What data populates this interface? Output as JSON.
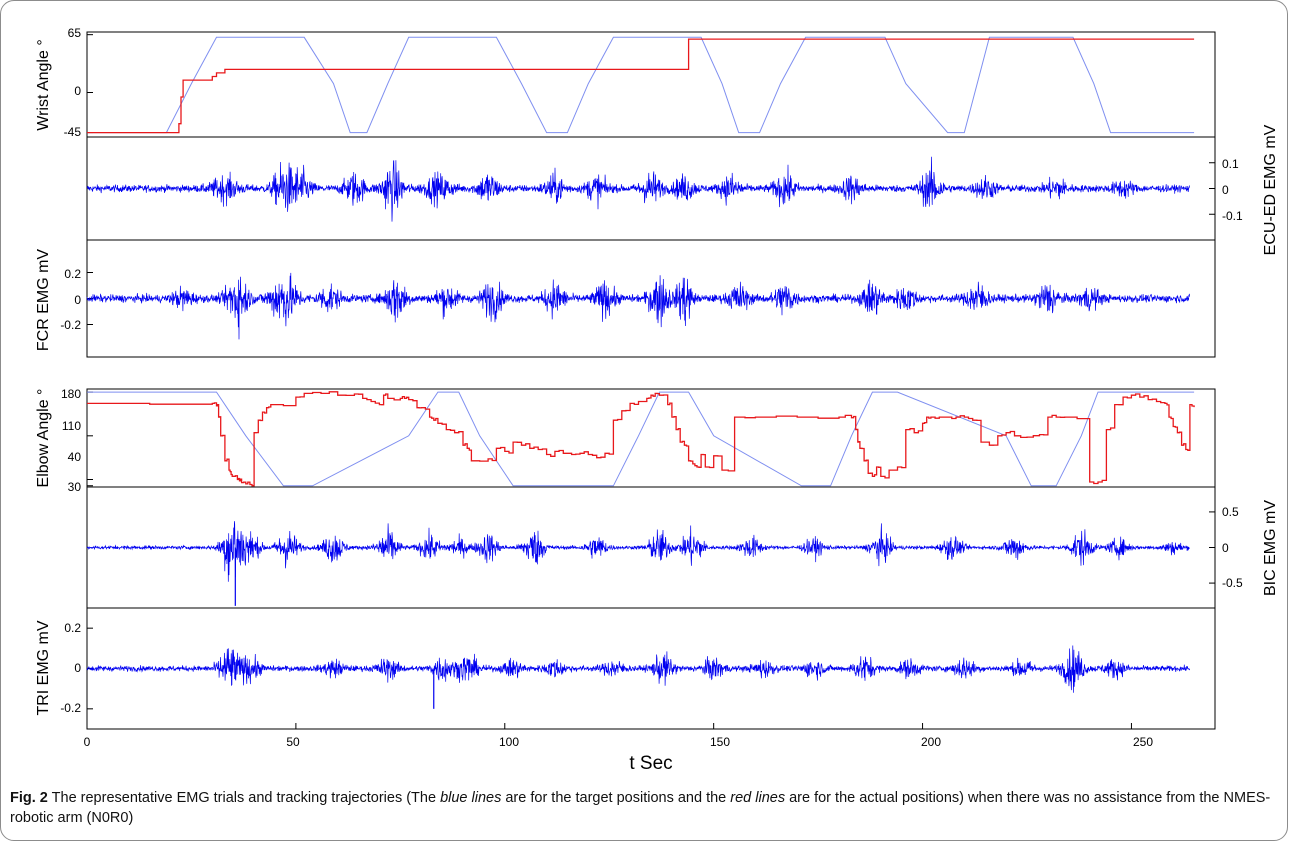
{
  "figure": {
    "caption_label": "Fig. 2",
    "caption_part1": " The representative EMG trials and tracking trajectories (The ",
    "caption_blue": "blue lines",
    "caption_part2": " are for the target positions and the ",
    "caption_red": "red lines",
    "caption_part3": " are for the actual positions) when there was no assistance from the NMES-robotic arm (N0R0)"
  },
  "colors": {
    "target": "#7f8ff0",
    "actual": "#e8181b",
    "emg": "#0000f0",
    "axis": "#000000"
  },
  "chart_data": [
    {
      "type": "line",
      "name": "wrist",
      "ylabel": "Wrist Angle °",
      "yticks": [
        -45,
        0,
        65
      ],
      "ylim": [
        -50,
        68
      ],
      "xlim": [
        0,
        270
      ],
      "series": [
        {
          "name": "target",
          "x": [
            0,
            19,
            25,
            31,
            52,
            59,
            63,
            67,
            72,
            77,
            98,
            104,
            110,
            115,
            120,
            126,
            145,
            147,
            152,
            156,
            161,
            166,
            172,
            191,
            196,
            206,
            210,
            216,
            236,
            241,
            245,
            250,
            265
          ],
          "y": [
            -45,
            -45,
            10,
            62,
            62,
            10,
            -45,
            -45,
            10,
            62,
            62,
            10,
            -45,
            -45,
            10,
            62,
            62,
            62,
            10,
            -45,
            -45,
            10,
            62,
            62,
            10,
            -45,
            -45,
            62,
            62,
            10,
            -45,
            -45,
            -45
          ]
        },
        {
          "name": "actual",
          "x": [
            0,
            21,
            22,
            22.5,
            23,
            29,
            30,
            31,
            32,
            33,
            34,
            143.5,
            144,
            265
          ],
          "y": [
            -45,
            -45,
            -35,
            -5,
            14,
            14,
            18,
            22,
            22,
            26,
            26,
            26,
            60,
            60
          ]
        }
      ]
    },
    {
      "type": "line",
      "name": "ecu-emg",
      "ylabel": "ECU-ED EMG mV",
      "yticks": [
        -0.1,
        0,
        0.1
      ],
      "ylim": [
        -0.2,
        0.2
      ],
      "xlim": [
        0,
        270
      ],
      "noise_base": 0.014,
      "bursts": [
        [
          33,
          4,
          0.045
        ],
        [
          47,
          3,
          0.09
        ],
        [
          51,
          3,
          0.07
        ],
        [
          64,
          3,
          0.06
        ],
        [
          73,
          3,
          0.1
        ],
        [
          84,
          4,
          0.05
        ],
        [
          96,
          3,
          0.06
        ],
        [
          112,
          3,
          0.05
        ],
        [
          122,
          3,
          0.05
        ],
        [
          135,
          3,
          0.06
        ],
        [
          143,
          3,
          0.045
        ],
        [
          154,
          3,
          0.05
        ],
        [
          167,
          3,
          0.06
        ],
        [
          183,
          3,
          0.045
        ],
        [
          202,
          3,
          0.08
        ],
        [
          215,
          3,
          0.04
        ],
        [
          232,
          3,
          0.04
        ],
        [
          248,
          3,
          0.03
        ]
      ]
    },
    {
      "type": "line",
      "name": "fcr-emg",
      "ylabel": "FCR EMG mV",
      "yticks": [
        -0.2,
        0,
        0.2
      ],
      "ylim": [
        -0.45,
        0.45
      ],
      "xlim": [
        0,
        270
      ],
      "noise_base": 0.03,
      "bursts": [
        [
          23,
          3,
          0.07
        ],
        [
          36,
          3,
          0.22
        ],
        [
          47,
          4,
          0.2
        ],
        [
          58,
          3,
          0.1
        ],
        [
          74,
          3,
          0.17
        ],
        [
          86,
          3,
          0.1
        ],
        [
          97,
          3,
          0.14
        ],
        [
          112,
          3,
          0.12
        ],
        [
          124,
          3,
          0.12
        ],
        [
          137,
          3,
          0.18
        ],
        [
          143,
          2,
          0.22
        ],
        [
          156,
          3,
          0.1
        ],
        [
          167,
          3,
          0.12
        ],
        [
          188,
          3,
          0.12
        ],
        [
          196,
          3,
          0.09
        ],
        [
          213,
          3,
          0.12
        ],
        [
          230,
          3,
          0.12
        ],
        [
          240,
          3,
          0.08
        ]
      ]
    },
    {
      "type": "line",
      "name": "elbow",
      "ylabel": "Elbow Angle °",
      "yticks": [
        30,
        40,
        110,
        180
      ],
      "ylim": [
        28,
        185
      ],
      "xlim": [
        0,
        270
      ],
      "series": [
        {
          "name": "target",
          "x": [
            0,
            31,
            38,
            47,
            54,
            77,
            84,
            89,
            94,
            102,
            126,
            132,
            137,
            144,
            150,
            171,
            178,
            183,
            188,
            194,
            220,
            226,
            232,
            238,
            242,
            265
          ],
          "y": [
            180,
            180,
            110,
            30,
            30,
            110,
            180,
            180,
            110,
            30,
            30,
            110,
            180,
            180,
            110,
            30,
            30,
            110,
            180,
            180,
            110,
            30,
            30,
            110,
            180,
            180
          ]
        },
        {
          "name": "actual",
          "x": [
            0,
            30,
            31,
            31.5,
            32,
            33,
            34,
            34.5,
            35,
            36,
            36.5,
            37,
            38,
            39,
            40,
            41,
            42,
            43,
            44,
            50,
            52,
            56,
            60,
            64,
            66,
            68,
            70,
            71,
            72,
            75,
            76,
            77,
            79,
            80,
            82,
            83,
            84,
            86,
            88,
            90,
            91,
            92,
            96,
            98,
            100,
            102,
            104,
            106,
            108,
            110,
            112,
            114,
            116,
            118,
            120,
            122,
            124,
            126,
            128,
            130,
            132,
            134,
            135,
            136,
            137,
            139,
            140,
            141,
            142,
            143,
            144,
            145,
            146,
            147,
            148,
            150,
            152,
            155,
            160,
            170,
            180,
            183,
            184,
            184.5,
            185,
            186,
            187,
            188,
            189,
            190,
            192,
            194,
            196,
            198,
            200,
            201,
            202,
            204,
            206,
            208,
            210,
            212,
            214,
            216,
            218,
            220,
            222,
            225,
            228,
            230,
            232,
            234,
            240,
            242,
            244,
            246,
            248,
            250,
            252,
            254,
            256,
            258,
            259,
            260,
            261,
            262,
            263,
            264,
            265
          ],
          "y": [
            162,
            162,
            158,
            140,
            110,
            70,
            55,
            48,
            45,
            40,
            38,
            35,
            33,
            32,
            115,
            135,
            148,
            155,
            160,
            172,
            178,
            178,
            175,
            177,
            170,
            165,
            160,
            175,
            170,
            170,
            170,
            168,
            155,
            155,
            140,
            135,
            130,
            120,
            115,
            95,
            90,
            70,
            73,
            90,
            85,
            100,
            95,
            90,
            88,
            80,
            85,
            82,
            80,
            82,
            80,
            75,
            82,
            135,
            150,
            162,
            165,
            170,
            175,
            178,
            175,
            160,
            140,
            120,
            100,
            95,
            70,
            65,
            60,
            80,
            60,
            78,
            55,
            140,
            140,
            140,
            140,
            139,
            120,
            100,
            90,
            70,
            50,
            45,
            60,
            45,
            55,
            60,
            120,
            115,
            130,
            140,
            140,
            140,
            140,
            140,
            140,
            135,
            100,
            95,
            110,
            115,
            110,
            108,
            112,
            140,
            140,
            140,
            36,
            36,
            120,
            160,
            172,
            175,
            172,
            168,
            165,
            162,
            140,
            125,
            115,
            95,
            88,
            160,
            156
          ],
          "jitter": 6
        }
      ]
    },
    {
      "type": "line",
      "name": "bic-emg",
      "ylabel": "BIC EMG mV",
      "yticks": [
        -0.5,
        0,
        0.5
      ],
      "ylim": [
        -0.85,
        0.85
      ],
      "xlim": [
        0,
        270
      ],
      "noise_base": 0.025,
      "bursts": [
        [
          35,
          3,
          0.55
        ],
        [
          39,
          3,
          0.2
        ],
        [
          48,
          3,
          0.26
        ],
        [
          59,
          3,
          0.22
        ],
        [
          72,
          3,
          0.26
        ],
        [
          82,
          3,
          0.18
        ],
        [
          89,
          3,
          0.12
        ],
        [
          96,
          3,
          0.2
        ],
        [
          107,
          3,
          0.26
        ],
        [
          122,
          3,
          0.16
        ],
        [
          137,
          3,
          0.24
        ],
        [
          145,
          3,
          0.26
        ],
        [
          159,
          3,
          0.15
        ],
        [
          174,
          3,
          0.12
        ],
        [
          190,
          3,
          0.22
        ],
        [
          207,
          3,
          0.16
        ],
        [
          222,
          3,
          0.18
        ],
        [
          238,
          3,
          0.24
        ],
        [
          247,
          3,
          0.12
        ],
        [
          260,
          3,
          0.08
        ]
      ],
      "spikes": [
        [
          35.5,
          -0.82
        ]
      ]
    },
    {
      "type": "line",
      "name": "tri-emg",
      "ylabel": "TRI EMG mV",
      "yticks": [
        -0.2,
        0,
        0.2
      ],
      "ylim": [
        -0.3,
        0.3
      ],
      "xlim": [
        0,
        270
      ],
      "xlabel": "t Sec",
      "xticks": [
        0,
        50,
        100,
        150,
        200,
        250
      ],
      "noise_base": 0.014,
      "bursts": [
        [
          34,
          3,
          0.11
        ],
        [
          39,
          3,
          0.06
        ],
        [
          59,
          3,
          0.04
        ],
        [
          72,
          3,
          0.05
        ],
        [
          85,
          3,
          0.06
        ],
        [
          91,
          3,
          0.07
        ],
        [
          102,
          3,
          0.04
        ],
        [
          112,
          3,
          0.04
        ],
        [
          126,
          3,
          0.04
        ],
        [
          138,
          3,
          0.07
        ],
        [
          150,
          3,
          0.05
        ],
        [
          162,
          3,
          0.04
        ],
        [
          174,
          3,
          0.04
        ],
        [
          186,
          3,
          0.06
        ],
        [
          197,
          3,
          0.04
        ],
        [
          210,
          3,
          0.05
        ],
        [
          224,
          3,
          0.04
        ],
        [
          236,
          3,
          0.1
        ],
        [
          246,
          3,
          0.04
        ]
      ],
      "spikes": [
        [
          83,
          -0.2
        ]
      ]
    }
  ]
}
